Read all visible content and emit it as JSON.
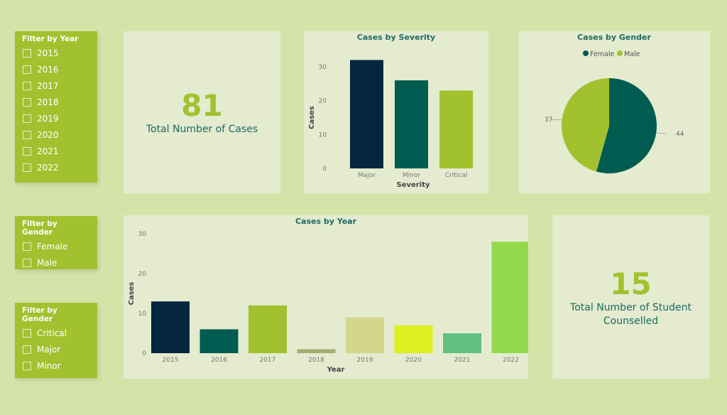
{
  "filters": [
    {
      "title": "Filter by Year",
      "options": [
        "2015",
        "2016",
        "2017",
        "2018",
        "2019",
        "2020",
        "2021",
        "2022"
      ]
    },
    {
      "title": "Filter by Gender",
      "options": [
        "Female",
        "Male"
      ]
    },
    {
      "title": "Filter by Gender",
      "options": [
        "Critical",
        "Major",
        "Minor"
      ]
    }
  ],
  "kpis": [
    {
      "value": "81",
      "label": "Total Number of Cases"
    },
    {
      "value": "15",
      "label": "Total Number of Student Counselled"
    }
  ],
  "chart_data": [
    {
      "type": "bar",
      "title": "Cases by Severity",
      "xlabel": "Severity",
      "ylabel": "Cases",
      "categories": [
        "Major",
        "Minor",
        "Critical"
      ],
      "values": [
        32,
        26,
        23
      ],
      "colors": [
        "#04263f",
        "#005c50",
        "#a2c12f"
      ],
      "yticks": [
        0,
        10,
        20,
        30
      ],
      "ylim": [
        0,
        30
      ]
    },
    {
      "type": "pie",
      "title": "Cases by Gender",
      "legend": [
        "Female",
        "Male"
      ],
      "values": [
        44,
        37
      ],
      "labels": [
        "44",
        "37"
      ],
      "colors": [
        "#005c50",
        "#a2c12f"
      ],
      "legend_position": "top"
    },
    {
      "type": "bar",
      "title": "Cases by Year",
      "xlabel": "Year",
      "ylabel": "Cases",
      "categories": [
        "2015",
        "2016",
        "2017",
        "2018",
        "2019",
        "2020",
        "2021",
        "2022"
      ],
      "values": [
        13,
        6,
        12,
        1,
        9,
        7,
        5,
        28
      ],
      "colors": [
        "#04263f",
        "#005c50",
        "#a2c12f",
        "#a3ad70",
        "#d4d68c",
        "#dcef22",
        "#62c080",
        "#93d94c"
      ],
      "yticks": [
        0,
        10,
        20,
        30
      ],
      "ylim": [
        0,
        30
      ]
    }
  ]
}
